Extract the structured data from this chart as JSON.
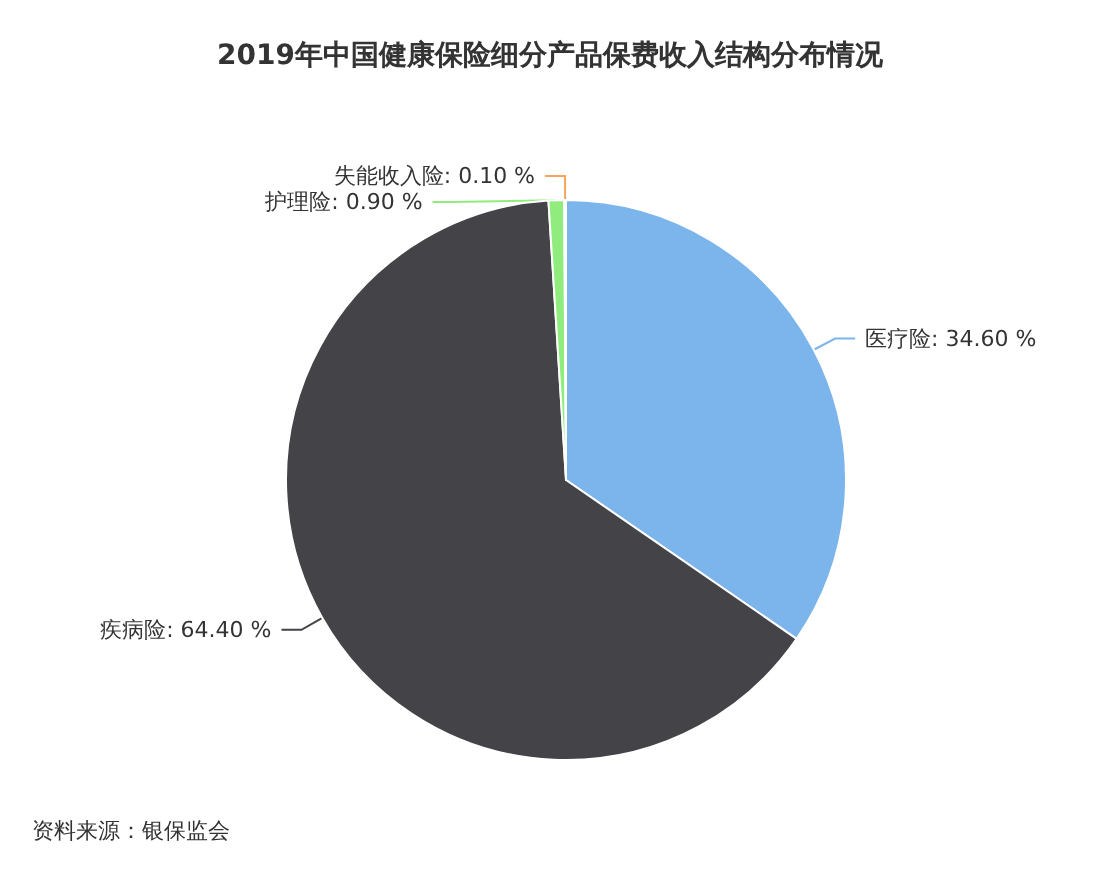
{
  "chart_data": {
    "type": "pie",
    "title": "2019年中国健康保险细分产品保费收入结构分布情况",
    "categories": [
      "医疗险",
      "疾病险",
      "护理险",
      "失能收入险"
    ],
    "values": [
      34.6,
      64.4,
      0.9,
      0.1
    ],
    "value_labels": [
      "34.60 %",
      "64.40 %",
      "0.90 %",
      "0.10 %"
    ],
    "colors": [
      "#7cb5ec",
      "#434348",
      "#90ed7d",
      "#f7a35c"
    ],
    "annotations": [
      "资料来源：银保监会"
    ]
  }
}
